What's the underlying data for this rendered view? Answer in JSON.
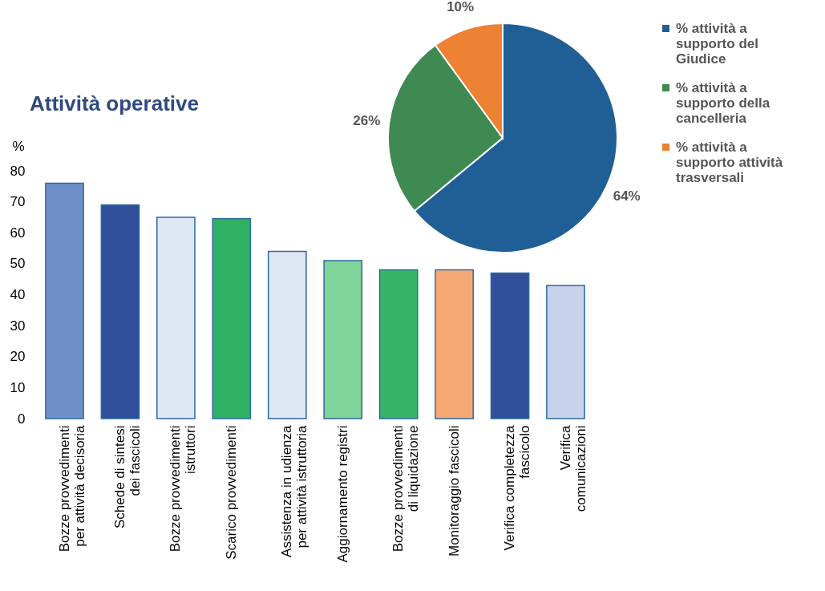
{
  "chart_data": [
    {
      "type": "bar",
      "title": "Attività operative",
      "ylabel": "%",
      "categories": [
        "Bozze provvedimenti\nper attività decisoria",
        "Schede di sintesi\ndei fascicoli",
        "Bozze provvedimenti\nistruttori",
        "Scarico provvedimenti",
        "Assistenza in udienza\nper attività istruttoria",
        "Aggiornamento registri",
        "Bozze provvedimenti\ndi liquidazione",
        "Monitoraggio fascicoli",
        "Verifica completezza\nfascicolo",
        "Verifica\ncomunicazioni"
      ],
      "values": [
        76,
        69,
        65,
        64.5,
        54,
        51,
        48,
        48,
        47,
        43
      ],
      "colors": [
        "#6f8fc8",
        "#2f4f9a",
        "#dfe7f3",
        "#2fb163",
        "#dfe7f3",
        "#7fd49a",
        "#35b568",
        "#f6a874",
        "#2f4f9a",
        "#c7d3ea"
      ],
      "ylim": [
        0,
        80
      ],
      "yticks": [
        0,
        10,
        20,
        30,
        40,
        50,
        60,
        70,
        80
      ],
      "grid": false
    },
    {
      "type": "pie",
      "categories": [
        "% attività a\nsupporto del\nGiudice",
        "% attività a\nsupporto della\ncancelleria",
        "% attività a\nsupporto attività\ntrasversali"
      ],
      "values": [
        64,
        26,
        10
      ],
      "colors": [
        "#1f5f96",
        "#3e8a52",
        "#ec8232"
      ],
      "value_labels": [
        "64%",
        "26%",
        "10%"
      ],
      "legend": "right"
    }
  ]
}
